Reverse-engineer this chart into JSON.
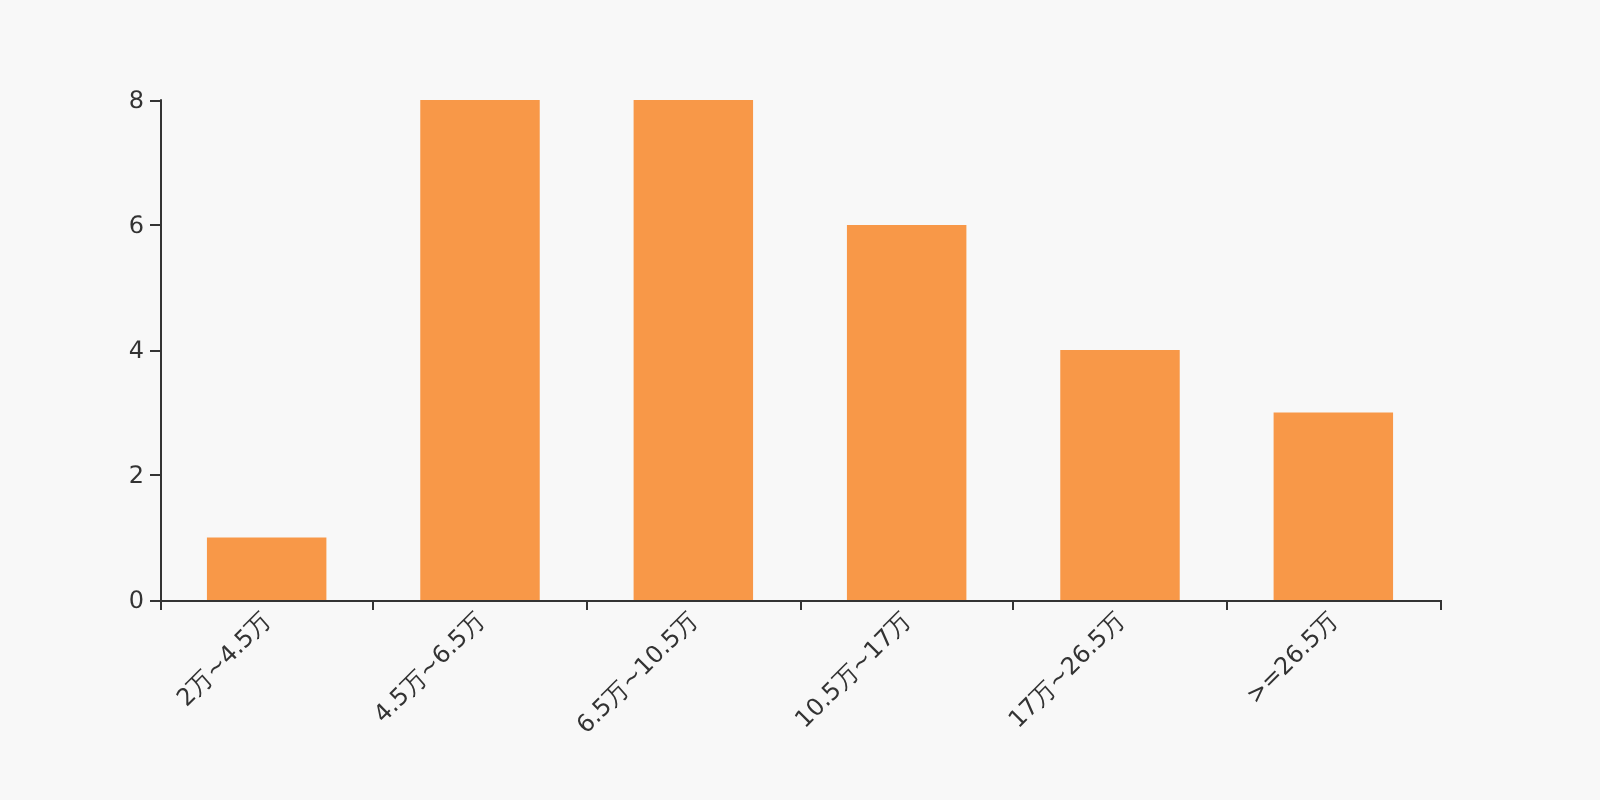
{
  "chart_data": {
    "type": "bar",
    "categories": [
      "2万~4.5万",
      "4.5万~6.5万",
      "6.5万~10.5万",
      "10.5万~17万",
      "17万~26.5万",
      ">=26.5万"
    ],
    "values": [
      1,
      8,
      8,
      6,
      4,
      3
    ],
    "color": "#f89848",
    "ylim": [
      0,
      8
    ],
    "yticks": [
      0,
      2,
      4,
      6,
      8
    ],
    "grid": false
  }
}
